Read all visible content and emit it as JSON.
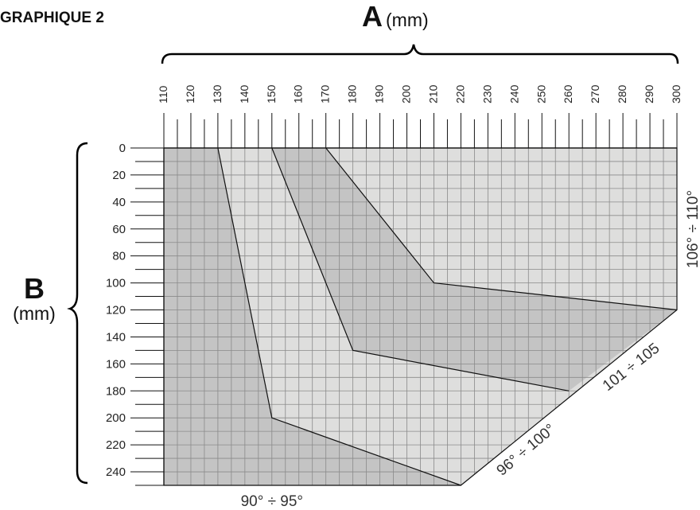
{
  "chart_data": {
    "type": "area",
    "title": "GRAPHIQUE 2",
    "xaxis": {
      "letter": "A",
      "unit": "(mm)",
      "range": [
        110,
        300
      ],
      "ticks": [
        110,
        120,
        130,
        140,
        150,
        160,
        170,
        180,
        190,
        200,
        210,
        220,
        230,
        240,
        250,
        260,
        270,
        280,
        290,
        300
      ]
    },
    "yaxis": {
      "letter": "B",
      "unit": "(mm)",
      "range": [
        0,
        250
      ],
      "inverted": true,
      "ticks": [
        0,
        20,
        40,
        60,
        80,
        100,
        120,
        140,
        160,
        180,
        200,
        220,
        240
      ]
    },
    "grid": true,
    "colors": {
      "dark_zone": "#c4c4c4",
      "light_zone": "#dededd",
      "grid": "#8a8a8a",
      "lines": "#111111"
    },
    "regions": [
      {
        "name": "90° ÷ 95°",
        "tone": "dark",
        "label_position": "bottom",
        "boundary": [
          [
            130,
            0
          ],
          [
            150,
            200
          ],
          [
            220,
            250
          ]
        ]
      },
      {
        "name": "96° ÷ 100°",
        "tone": "light",
        "label_position": "bottom-right diagonal",
        "boundary": [
          [
            150,
            0
          ],
          [
            180,
            150
          ],
          [
            260,
            180
          ]
        ]
      },
      {
        "name": "101 ÷ 105",
        "tone": "dark",
        "label_position": "right diagonal",
        "boundary": [
          [
            170,
            0
          ],
          [
            210,
            100
          ],
          [
            300,
            120
          ]
        ]
      },
      {
        "name": "106° ÷ 110°",
        "tone": "light",
        "label_position": "right vertical"
      }
    ]
  }
}
